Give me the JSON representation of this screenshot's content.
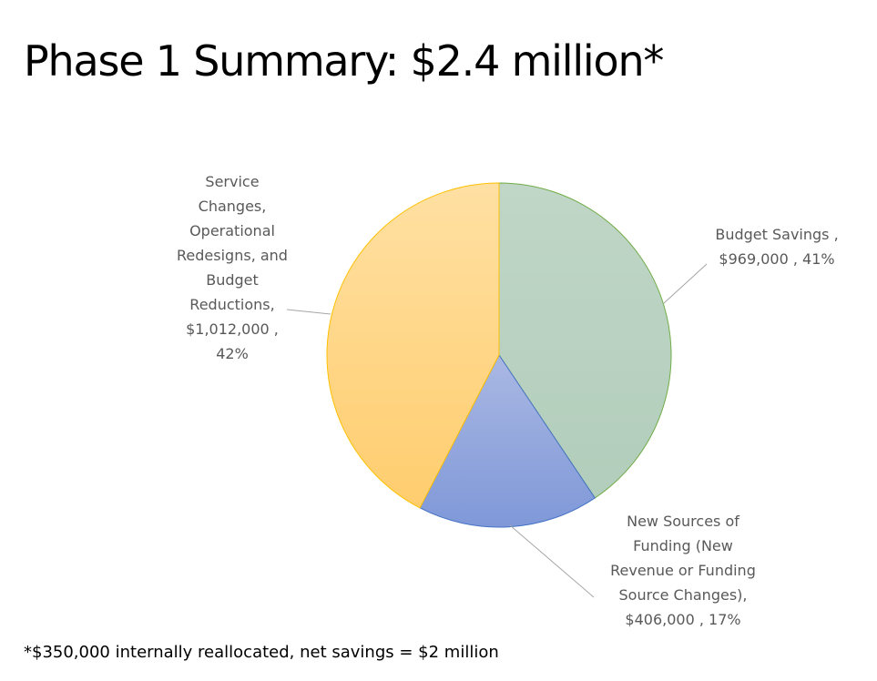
{
  "slide": {
    "title": "Phase 1 Summary: $2.4 million*",
    "footnote": "*$350,000 internally reallocated, net savings = $2 million"
  },
  "chart_data": {
    "type": "pie",
    "title": "",
    "slices": [
      {
        "name": "Budget Savings",
        "value": 969000,
        "percent": 41,
        "label_lines": [
          "Budget Savings ,",
          "$969,000 , 41%"
        ],
        "fill_top": "#c0d6c7",
        "fill_bottom": "#b2cdbb",
        "stroke": "#70ad47"
      },
      {
        "name": "New Sources of Funding (New Revenue or Funding Source Changes)",
        "value": 406000,
        "percent": 17,
        "label_lines": [
          "New Sources of",
          "Funding (New",
          "Revenue or Funding",
          "Source Changes),",
          "$406,000 , 17%"
        ],
        "fill_top": "#aab8e3",
        "fill_bottom": "#7f98d8",
        "stroke": "#4472c4"
      },
      {
        "name": "Service Changes, Operational Redesigns, and Budget Reductions",
        "value": 1012000,
        "percent": 42,
        "label_lines": [
          "Service",
          "Changes,",
          "Operational",
          "Redesigns, and",
          "Budget",
          "Reductions,",
          "$1,012,000 ,",
          "42%"
        ],
        "fill_top": "#ffe0a3",
        "fill_bottom": "#ffcd6e",
        "stroke": "#ffc000"
      }
    ],
    "leader_line_color": "#a6a6a6",
    "legend": "none"
  }
}
